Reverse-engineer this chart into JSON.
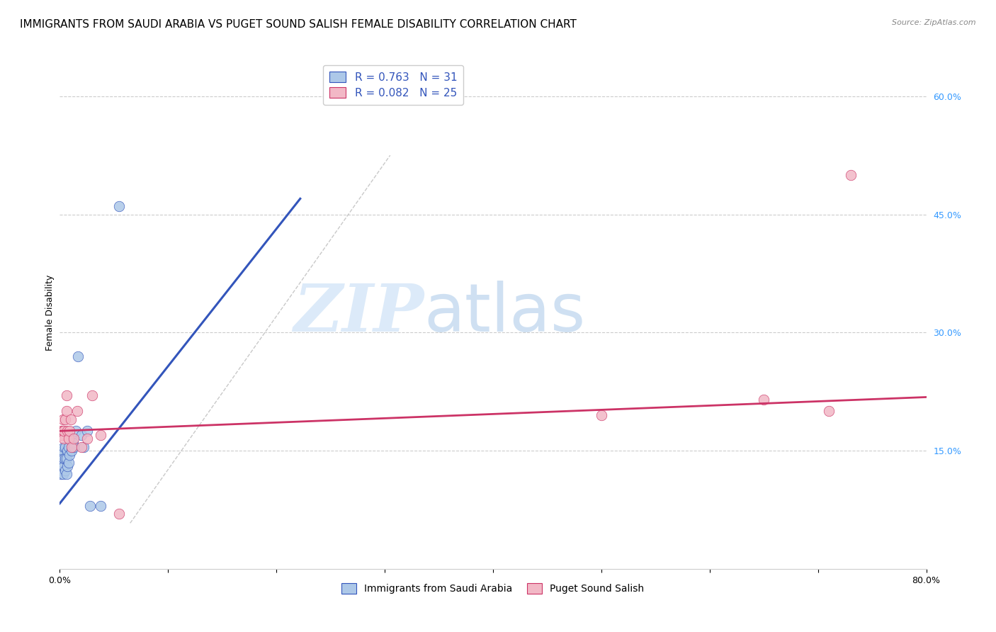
{
  "title": "IMMIGRANTS FROM SAUDI ARABIA VS PUGET SOUND SALISH FEMALE DISABILITY CORRELATION CHART",
  "source": "Source: ZipAtlas.com",
  "ylabel": "Female Disability",
  "xlim": [
    0.0,
    0.8
  ],
  "ylim": [
    0.0,
    0.65
  ],
  "y_ticks_right": [
    0.15,
    0.3,
    0.45,
    0.6
  ],
  "y_tick_labels_right": [
    "15.0%",
    "30.0%",
    "45.0%",
    "60.0%"
  ],
  "blue_color": "#adc8e8",
  "blue_line_color": "#3355bb",
  "pink_color": "#f2b8c6",
  "pink_line_color": "#cc3366",
  "legend_r_blue": "0.763",
  "legend_n_blue": "31",
  "legend_r_pink": "0.082",
  "legend_n_pink": "25",
  "legend_label_blue": "Immigrants from Saudi Arabia",
  "legend_label_pink": "Puget Sound Salish",
  "watermark_zip": "ZIP",
  "watermark_atlas": "atlas",
  "blue_scatter_x": [
    0.001,
    0.002,
    0.002,
    0.003,
    0.003,
    0.003,
    0.004,
    0.004,
    0.004,
    0.005,
    0.005,
    0.005,
    0.006,
    0.006,
    0.007,
    0.007,
    0.008,
    0.008,
    0.009,
    0.01,
    0.011,
    0.012,
    0.013,
    0.015,
    0.017,
    0.02,
    0.022,
    0.025,
    0.028,
    0.038,
    0.055
  ],
  "blue_scatter_y": [
    0.12,
    0.13,
    0.145,
    0.12,
    0.135,
    0.15,
    0.13,
    0.14,
    0.155,
    0.125,
    0.14,
    0.155,
    0.12,
    0.14,
    0.13,
    0.15,
    0.135,
    0.155,
    0.145,
    0.165,
    0.15,
    0.16,
    0.155,
    0.175,
    0.27,
    0.17,
    0.155,
    0.175,
    0.08,
    0.08,
    0.46
  ],
  "pink_scatter_x": [
    0.001,
    0.002,
    0.003,
    0.003,
    0.004,
    0.004,
    0.005,
    0.006,
    0.006,
    0.007,
    0.008,
    0.009,
    0.01,
    0.011,
    0.013,
    0.016,
    0.02,
    0.025,
    0.03,
    0.038,
    0.055,
    0.5,
    0.65,
    0.71,
    0.73
  ],
  "pink_scatter_y": [
    0.175,
    0.17,
    0.175,
    0.19,
    0.165,
    0.175,
    0.19,
    0.2,
    0.22,
    0.175,
    0.165,
    0.175,
    0.19,
    0.155,
    0.165,
    0.2,
    0.155,
    0.165,
    0.22,
    0.17,
    0.07,
    0.195,
    0.215,
    0.2,
    0.5
  ],
  "blue_line_x": [
    0.0,
    0.222
  ],
  "blue_line_y": [
    0.083,
    0.47
  ],
  "pink_line_x": [
    0.0,
    0.8
  ],
  "pink_line_y": [
    0.175,
    0.218
  ],
  "dashed_line_x": [
    0.065,
    0.305
  ],
  "dashed_line_y": [
    0.058,
    0.525
  ],
  "grid_color": "#cccccc",
  "title_fontsize": 11,
  "axis_label_fontsize": 9,
  "tick_fontsize": 9,
  "right_tick_color": "#3399ff"
}
